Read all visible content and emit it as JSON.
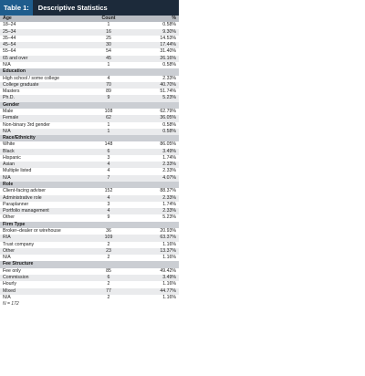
{
  "title": {
    "tag": "Table 1:",
    "text": "Descriptive Statistics"
  },
  "columns": [
    "Age",
    "Count",
    "%"
  ],
  "sections": [
    {
      "rows": [
        [
          "18–24",
          "1",
          "0.58%"
        ],
        [
          "25–34",
          "16",
          "9.30%"
        ],
        [
          "35–44",
          "25",
          "14.53%"
        ],
        [
          "45–54",
          "30",
          "17.44%"
        ],
        [
          "55–64",
          "54",
          "31.40%"
        ],
        [
          "65 and over",
          "45",
          "26.16%"
        ],
        [
          "N/A",
          "1",
          "0.58%"
        ]
      ]
    },
    {
      "header": "Education",
      "rows": [
        [
          "High school / some college",
          "4",
          "2.33%"
        ],
        [
          "College graduate",
          "70",
          "40.70%"
        ],
        [
          "Masters",
          "89",
          "51.74%"
        ],
        [
          "Ph.D.",
          "9",
          "5.23%"
        ]
      ]
    },
    {
      "header": "Gender",
      "rows": [
        [
          "Male",
          "108",
          "62.79%"
        ],
        [
          "Female",
          "62",
          "36.05%"
        ],
        [
          "Non-binary 3rd gender",
          "1",
          "0.58%"
        ],
        [
          "N/A",
          "1",
          "0.58%"
        ]
      ]
    },
    {
      "header": "Race/Ethnicity",
      "rows": [
        [
          "White",
          "148",
          "86.05%"
        ],
        [
          "Black",
          "6",
          "3.49%"
        ],
        [
          "Hispanic",
          "3",
          "1.74%"
        ],
        [
          "Asian",
          "4",
          "2.33%"
        ],
        [
          "Multiple listed",
          "4",
          "2.33%"
        ],
        [
          "N/A",
          "7",
          "4.07%"
        ]
      ]
    },
    {
      "header": "Role",
      "rows": [
        [
          "Client-facing adviser",
          "152",
          "88.37%"
        ],
        [
          "Administrative role",
          "4",
          "2.33%"
        ],
        [
          "Paraplanner",
          "3",
          "1.74%"
        ],
        [
          "Portfolio management",
          "4",
          "2.33%"
        ],
        [
          "Other",
          "9",
          "5.23%"
        ]
      ]
    },
    {
      "header": "Firm Type",
      "rows": [
        [
          "Broker–dealer or wirehouse",
          "36",
          "20.93%"
        ],
        [
          "RIA",
          "109",
          "63.37%"
        ],
        [
          "Trust company",
          "2",
          "1.16%"
        ],
        [
          "Other",
          "23",
          "13.37%"
        ],
        [
          "N/A",
          "2",
          "1.16%"
        ]
      ]
    },
    {
      "header": "Fee Structure",
      "rows": [
        [
          "Fee only",
          "85",
          "49.42%"
        ],
        [
          "Commission",
          "6",
          "3.49%"
        ],
        [
          "Hourly",
          "2",
          "1.16%"
        ],
        [
          "Mixed",
          "77",
          "44.77%"
        ],
        [
          "N/A",
          "2",
          "1.16%"
        ]
      ]
    }
  ],
  "footnote": "N = 172"
}
